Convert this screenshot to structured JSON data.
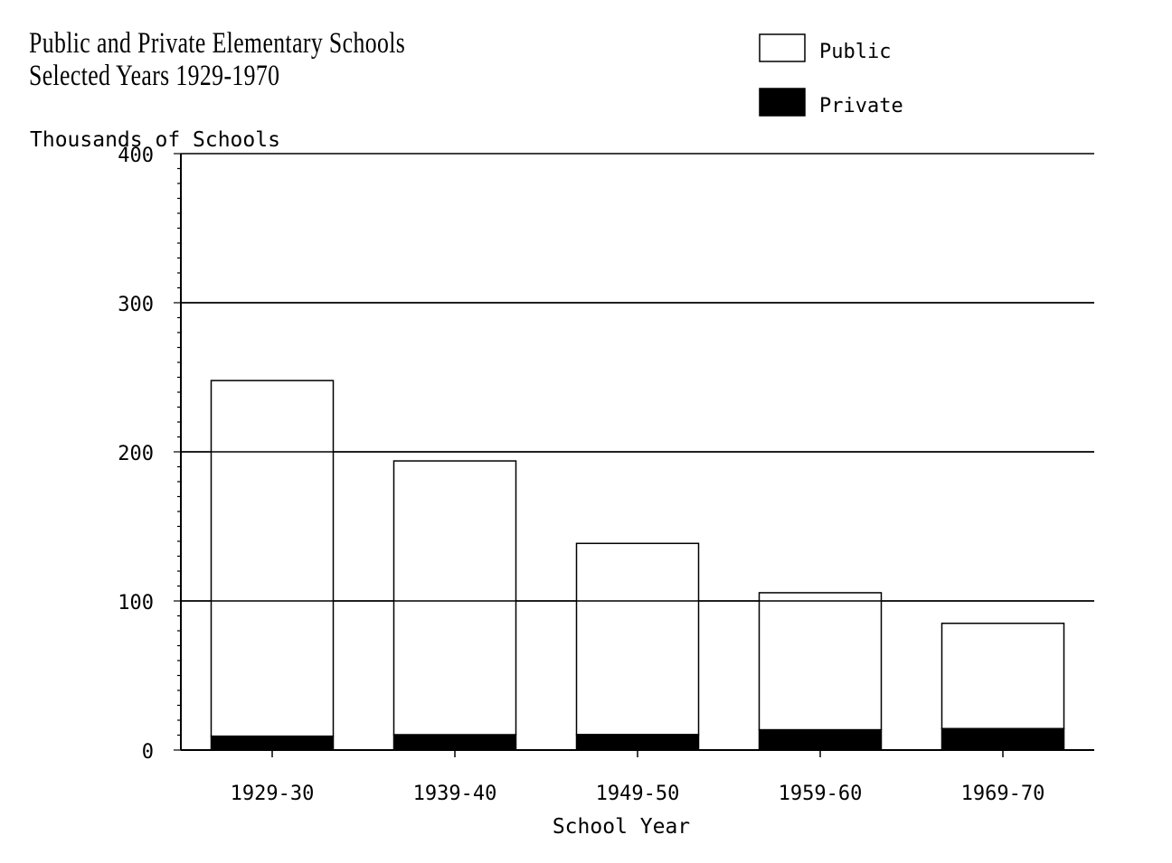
{
  "chart_data": {
    "type": "bar",
    "stacked": true,
    "title": "Public and Private Elementary Schools",
    "subtitle": "Selected Years 1929-1970",
    "ylabel": "Thousands of Schools",
    "xlabel": "School Year",
    "ylim": [
      0,
      400
    ],
    "yticks": [
      0,
      100,
      200,
      300,
      400
    ],
    "ytick_labels": [
      "0",
      "100",
      "200",
      "300",
      "400"
    ],
    "categories": [
      "1929-30",
      "1939-40",
      "1949-50",
      "1959-60",
      "1969-70"
    ],
    "series": [
      {
        "name": "Private",
        "values": [
          9.3,
          10.3,
          10.4,
          13.6,
          14.4
        ],
        "color": "#000000"
      },
      {
        "name": "Public",
        "values": [
          238.5,
          183.6,
          128.2,
          91.9,
          70.6
        ],
        "color": "#ffffff"
      }
    ],
    "legend": [
      "Public",
      "Private"
    ],
    "legend_position": "top-right",
    "grid": "horizontal"
  }
}
